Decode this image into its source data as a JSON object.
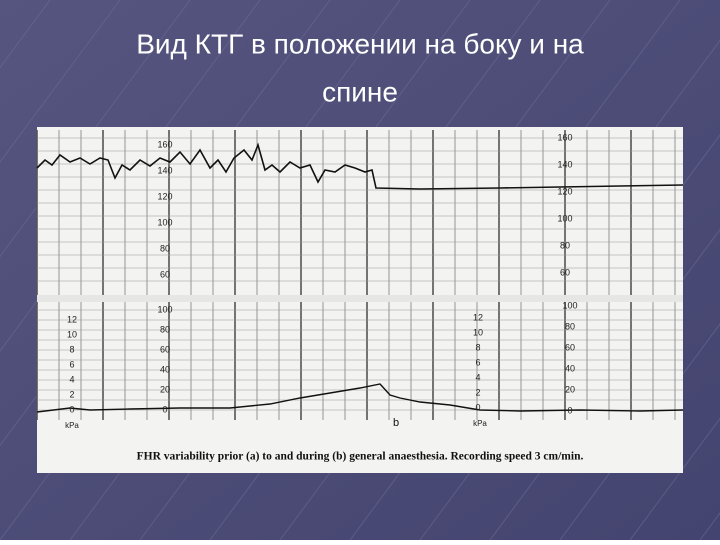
{
  "title": "Вид КТГ в положении на боку и на спине",
  "figure": {
    "upper_scale": [
      "160",
      "140",
      "120",
      "100",
      "80",
      "60"
    ],
    "lower_scale": [
      "100",
      "80",
      "60",
      "40",
      "20",
      "0"
    ],
    "pressure_scale": [
      "12",
      "10",
      "8",
      "6",
      "4",
      "2",
      "0"
    ],
    "pressure_unit": "kPa",
    "panel_label": "b",
    "caption": "FHR variability prior (a) to and during (b) general anaesthesia. Recording speed 3 cm/min."
  }
}
